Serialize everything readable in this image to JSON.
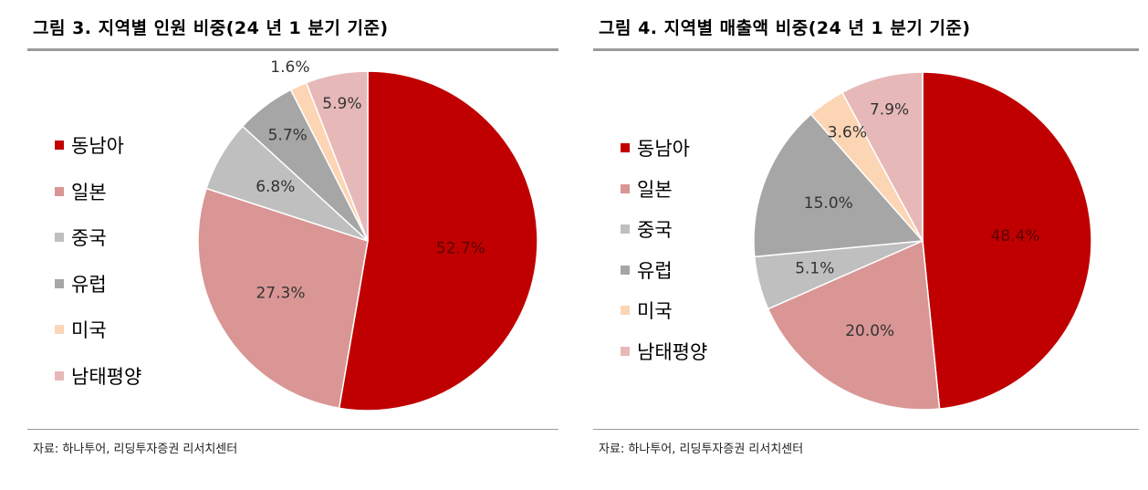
{
  "colors": {
    "동남아": "#c00000",
    "일본": "#d99694",
    "중국": "#bfbfbf",
    "유럽": "#a6a6a6",
    "미국": "#fcd5b5",
    "남태평양": "#e6b9b8"
  },
  "figures": [
    {
      "title": "그림 3. 지역별 인원 비중(24 년 1 분기 기준)",
      "source": "자료: 하나투어, 리딩투자증권 리서치센터"
    },
    {
      "title": "그림 4.   지역별 매출액 비중(24 년 1 분기 기준)",
      "source": "자료: 하나투어, 리딩투자증권 리서치센터"
    }
  ],
  "chart_data": [
    {
      "type": "pie",
      "title": "그림 3. 지역별 인원 비중(24 년 1 분기 기준)",
      "categories": [
        "동남아",
        "일본",
        "중국",
        "유럽",
        "미국",
        "남태평양"
      ],
      "values": [
        52.7,
        27.3,
        6.8,
        5.7,
        1.6,
        5.9
      ],
      "labels": [
        "52.7%",
        "27.3%",
        "6.8%",
        "5.7%",
        "1.6%",
        "5.9%"
      ],
      "unit": "%",
      "legend": "left"
    },
    {
      "type": "pie",
      "title": "그림 4.   지역별 매출액 비중(24 년 1 분기 기준)",
      "categories": [
        "동남아",
        "일본",
        "중국",
        "유럽",
        "미국",
        "남태평양"
      ],
      "values": [
        48.4,
        20.0,
        5.1,
        15.0,
        3.6,
        7.9
      ],
      "labels": [
        "48.4%",
        "20.0%",
        "5.1%",
        "15.0%",
        "3.6%",
        "7.9%"
      ],
      "unit": "%",
      "legend": "left"
    }
  ]
}
